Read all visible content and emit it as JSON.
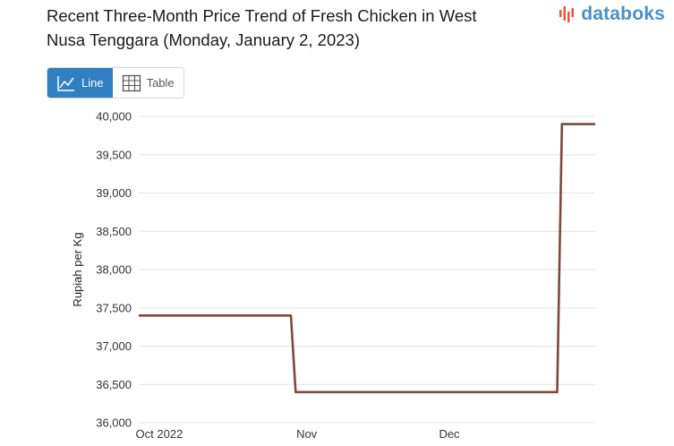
{
  "header": {
    "title": "Recent Three-Month Price Trend of Fresh Chicken in West Nusa Tenggara (Monday, January 2, 2023)",
    "brand": "databoks"
  },
  "view_toggle": {
    "line_label": "Line",
    "table_label": "Table",
    "selected": "Line"
  },
  "colors": {
    "line": "#7a4a3e",
    "accent": "#2f7fc1",
    "brand": "#4a90c8",
    "brand_logo": "#e8553a"
  },
  "icons": {
    "line": "line-chart-icon",
    "table": "table-grid-icon",
    "logo": "databoks-logo-icon"
  },
  "chart_data": {
    "type": "line",
    "title": "Recent Three-Month Price Trend of Fresh Chicken in West Nusa Tenggara (Monday, January 2, 2023)",
    "xlabel": "",
    "ylabel": "Rupiah per Kg",
    "ylim": [
      36000,
      40000
    ],
    "yticks": [
      "36,000",
      "36,500",
      "37,000",
      "37,500",
      "38,000",
      "38,500",
      "39,000",
      "39,500",
      "40,000"
    ],
    "xlim": [
      "2022-09-28",
      "2023-01-02"
    ],
    "xticks": [
      {
        "label": "Oct 2022",
        "date": "2022-10-01"
      },
      {
        "label": "Nov",
        "date": "2022-11-01"
      },
      {
        "label": "Dec",
        "date": "2022-12-01"
      }
    ],
    "grid": true,
    "legend": "none",
    "series": [
      {
        "points": [
          {
            "x": "2022-09-28",
            "y": 37400
          },
          {
            "x": "2022-10-30",
            "y": 37400
          },
          {
            "x": "2022-10-31",
            "y": 36400
          },
          {
            "x": "2022-12-25",
            "y": 36400
          },
          {
            "x": "2022-12-26",
            "y": 39900
          },
          {
            "x": "2023-01-02",
            "y": 39900
          }
        ]
      }
    ]
  }
}
